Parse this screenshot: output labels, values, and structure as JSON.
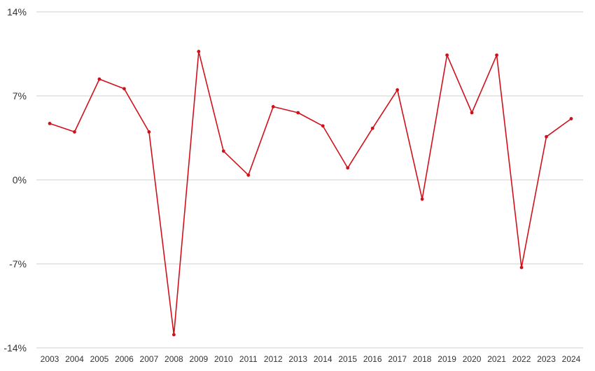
{
  "chart_data": {
    "type": "line",
    "title": "",
    "xlabel": "",
    "ylabel": "",
    "categories": [
      "2003",
      "2004",
      "2005",
      "2006",
      "2007",
      "2008",
      "2009",
      "2010",
      "2011",
      "2012",
      "2013",
      "2014",
      "2015",
      "2016",
      "2017",
      "2018",
      "2019",
      "2020",
      "2021",
      "2022",
      "2023",
      "2024"
    ],
    "series": [
      {
        "values": [
          4.7,
          4.0,
          8.4,
          7.6,
          4.0,
          -12.9,
          10.7,
          2.4,
          0.4,
          6.1,
          5.6,
          4.5,
          1.0,
          4.3,
          7.5,
          -1.6,
          10.4,
          5.6,
          10.4,
          -7.3,
          3.6,
          5.1
        ],
        "color": "#d0111b"
      }
    ],
    "ylim": [
      -14,
      14
    ],
    "yticks": [
      14,
      7,
      0,
      -7,
      -14
    ],
    "ytick_labels": [
      "14%",
      "7%",
      "0%",
      "-7%",
      "-14%"
    ],
    "grid": true,
    "legend": "none"
  }
}
